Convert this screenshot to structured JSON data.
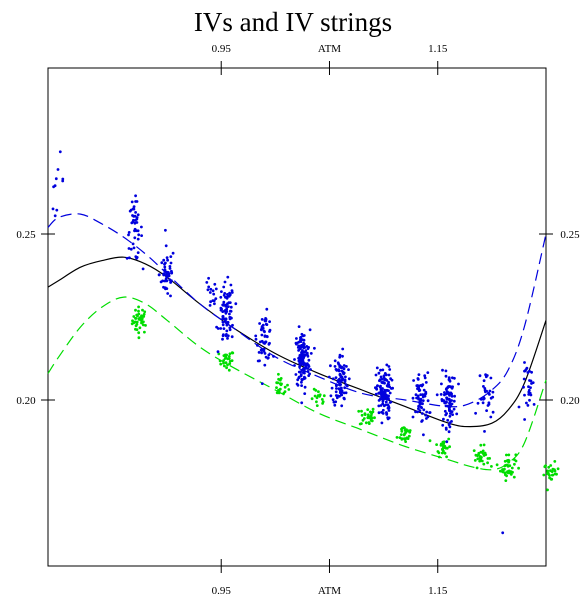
{
  "chart_data": {
    "type": "scatter",
    "title": "IVs and IV strings",
    "xlabel": "",
    "ylabel": "",
    "xlim": [
      0.79,
      1.25
    ],
    "ylim": [
      0.15,
      0.3
    ],
    "grid": false,
    "legend": "none",
    "x_ticks": [
      {
        "value": 0.95,
        "label": "0.95"
      },
      {
        "value": 1.05,
        "label": "ATM"
      },
      {
        "value": 1.15,
        "label": "1.15"
      }
    ],
    "y_ticks": [
      {
        "value": 0.2,
        "label": "0.20"
      },
      {
        "value": 0.25,
        "label": "0.25"
      }
    ],
    "colors": {
      "blue": "#0000dd",
      "green": "#00dd00",
      "black": "#000000"
    },
    "scatter_clusters": {
      "blue": [
        {
          "x": 0.798,
          "y": 0.266,
          "spread": 0.004,
          "n": 10
        },
        {
          "x": 0.87,
          "y": 0.251,
          "spread": 0.0045,
          "n": 45
        },
        {
          "x": 0.9,
          "y": 0.238,
          "spread": 0.004,
          "n": 50
        },
        {
          "x": 0.94,
          "y": 0.231,
          "spread": 0.003,
          "n": 15
        },
        {
          "x": 0.955,
          "y": 0.226,
          "spread": 0.0045,
          "n": 80
        },
        {
          "x": 0.99,
          "y": 0.219,
          "spread": 0.0035,
          "n": 55
        },
        {
          "x": 1.025,
          "y": 0.212,
          "spread": 0.0045,
          "n": 130
        },
        {
          "x": 1.06,
          "y": 0.206,
          "spread": 0.004,
          "n": 90
        },
        {
          "x": 1.1,
          "y": 0.202,
          "spread": 0.004,
          "n": 110
        },
        {
          "x": 1.135,
          "y": 0.2,
          "spread": 0.004,
          "n": 65
        },
        {
          "x": 1.16,
          "y": 0.2,
          "spread": 0.004,
          "n": 85
        },
        {
          "x": 1.195,
          "y": 0.201,
          "spread": 0.004,
          "n": 30
        },
        {
          "x": 1.235,
          "y": 0.204,
          "spread": 0.0035,
          "n": 28
        }
      ],
      "green": [
        {
          "x": 0.875,
          "y": 0.224,
          "spread": 0.002,
          "n": 40
        },
        {
          "x": 0.955,
          "y": 0.212,
          "spread": 0.0015,
          "n": 25
        },
        {
          "x": 1.005,
          "y": 0.204,
          "spread": 0.0015,
          "n": 20
        },
        {
          "x": 1.04,
          "y": 0.2,
          "spread": 0.0015,
          "n": 15
        },
        {
          "x": 1.085,
          "y": 0.195,
          "spread": 0.0015,
          "n": 30
        },
        {
          "x": 1.12,
          "y": 0.19,
          "spread": 0.0015,
          "n": 30
        },
        {
          "x": 1.155,
          "y": 0.186,
          "spread": 0.0015,
          "n": 25
        },
        {
          "x": 1.19,
          "y": 0.183,
          "spread": 0.0015,
          "n": 30
        },
        {
          "x": 1.215,
          "y": 0.18,
          "spread": 0.002,
          "n": 40
        },
        {
          "x": 1.255,
          "y": 0.178,
          "spread": 0.0015,
          "n": 25
        }
      ]
    },
    "blue_outliers": [
      {
        "x": 1.21,
        "y": 0.16
      },
      {
        "x": 1.185,
        "y": 0.196
      }
    ],
    "series": [
      {
        "style": "solid",
        "color": "black",
        "x": [
          0.79,
          0.8,
          0.82,
          0.84,
          0.86,
          0.88,
          0.9,
          0.93,
          0.96,
          1.0,
          1.04,
          1.08,
          1.12,
          1.16,
          1.18,
          1.2,
          1.215,
          1.23,
          1.25
        ],
        "y": [
          0.234,
          0.236,
          0.24,
          0.242,
          0.243,
          0.241,
          0.237,
          0.229,
          0.222,
          0.214,
          0.208,
          0.203,
          0.198,
          0.193,
          0.192,
          0.193,
          0.197,
          0.205,
          0.224
        ]
      },
      {
        "style": "dashed",
        "color": "blue",
        "x": [
          0.79,
          0.8,
          0.82,
          0.84,
          0.86,
          0.88,
          0.9,
          0.93,
          0.96,
          1.0,
          1.04,
          1.08,
          1.12,
          1.16,
          1.18,
          1.2,
          1.215,
          1.23,
          1.25
        ],
        "y": [
          0.252,
          0.255,
          0.256,
          0.253,
          0.249,
          0.244,
          0.238,
          0.229,
          0.222,
          0.213,
          0.207,
          0.202,
          0.2,
          0.198,
          0.199,
          0.203,
          0.209,
          0.222,
          0.25
        ]
      },
      {
        "style": "dashed",
        "color": "green",
        "x": [
          0.79,
          0.8,
          0.82,
          0.84,
          0.86,
          0.88,
          0.9,
          0.93,
          0.96,
          1.0,
          1.04,
          1.08,
          1.12,
          1.16,
          1.18,
          1.2,
          1.215,
          1.23,
          1.25
        ],
        "y": [
          0.208,
          0.213,
          0.222,
          0.228,
          0.231,
          0.229,
          0.224,
          0.216,
          0.21,
          0.203,
          0.196,
          0.191,
          0.186,
          0.182,
          0.18,
          0.179,
          0.181,
          0.187,
          0.206
        ]
      }
    ]
  }
}
